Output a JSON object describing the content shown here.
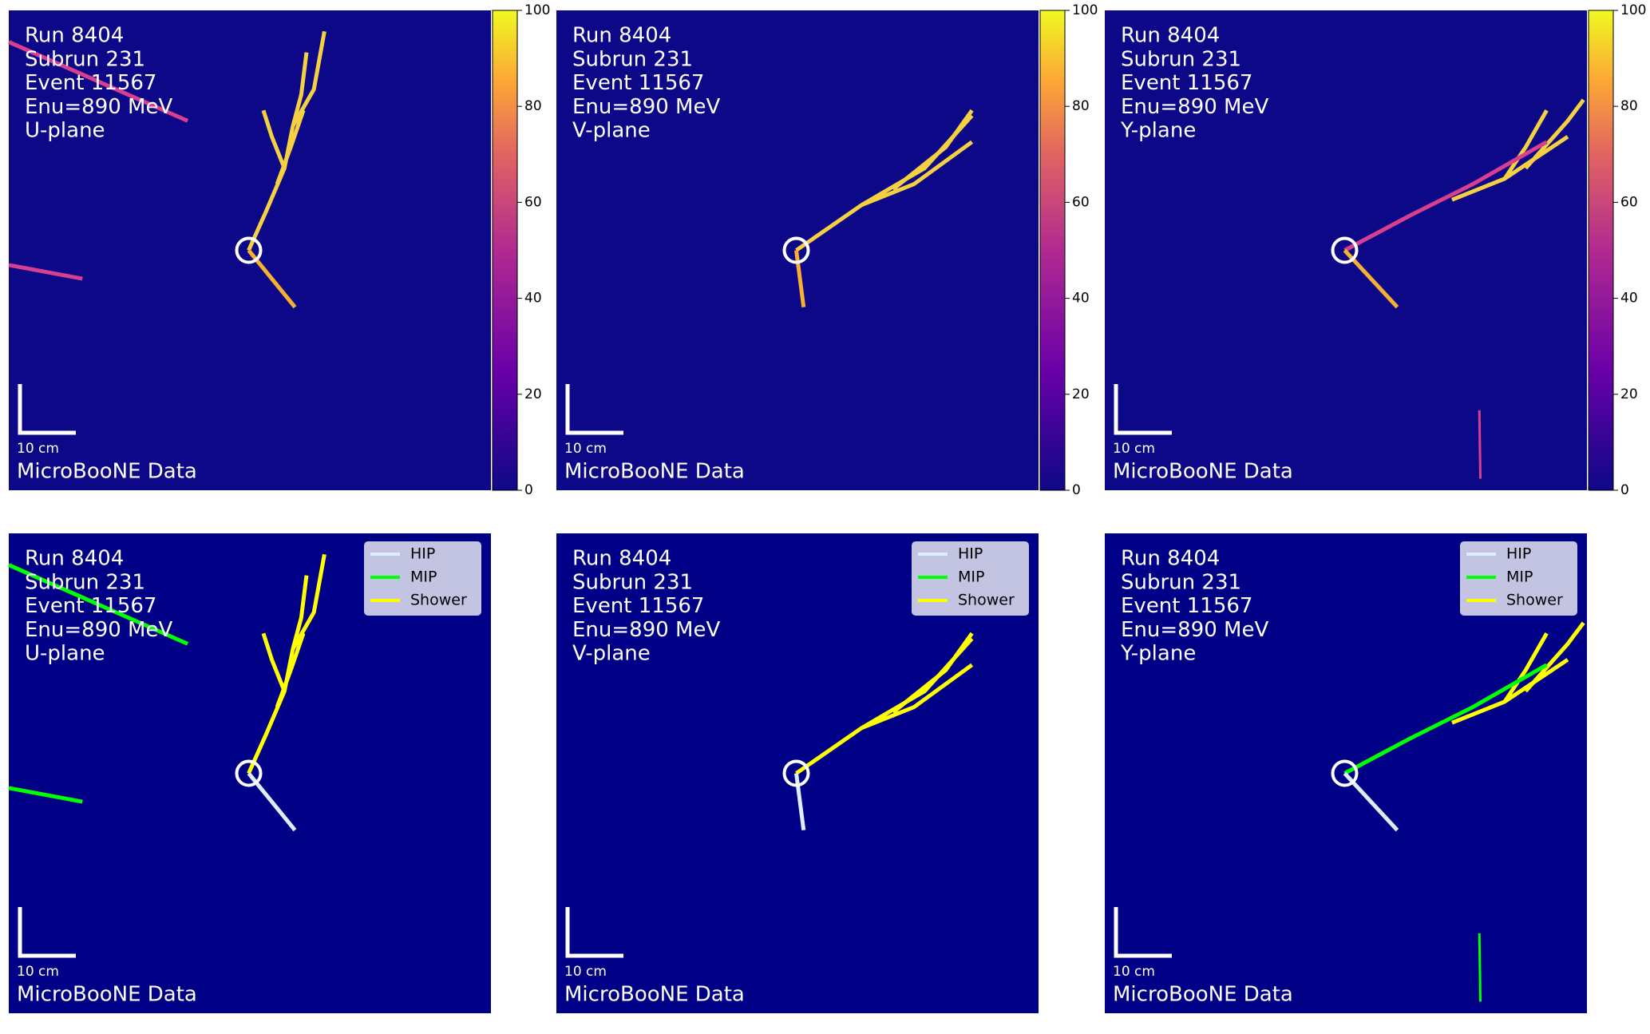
{
  "panels": [
    {
      "lines": [
        "Run 8404",
        "Subrun 231",
        "Event 11567",
        "Enu=890 MeV",
        "U-plane"
      ],
      "scale_label": "10 cm",
      "footer": "MicroBooNE Data"
    },
    {
      "lines": [
        "Run 8404",
        "Subrun 231",
        "Event 11567",
        "Enu=890 MeV",
        "V-plane"
      ],
      "scale_label": "10 cm",
      "footer": "MicroBooNE Data"
    },
    {
      "lines": [
        "Run 8404",
        "Subrun 231",
        "Event 11567",
        "Enu=890 MeV",
        "Y-plane"
      ],
      "scale_label": "10 cm",
      "footer": "MicroBooNE Data"
    },
    {
      "lines": [
        "Run 8404",
        "Subrun 231",
        "Event 11567",
        "Enu=890 MeV",
        "U-plane"
      ],
      "scale_label": "10 cm",
      "footer": "MicroBooNE Data"
    },
    {
      "lines": [
        "Run 8404",
        "Subrun 231",
        "Event 11567",
        "Enu=890 MeV",
        "V-plane"
      ],
      "scale_label": "10 cm",
      "footer": "MicroBooNE Data"
    },
    {
      "lines": [
        "Run 8404",
        "Subrun 231",
        "Event 11567",
        "Enu=890 MeV",
        "Y-plane"
      ],
      "scale_label": "10 cm",
      "footer": "MicroBooNE Data"
    }
  ],
  "colorbar": {
    "range": [
      0,
      100
    ],
    "ticks": [
      0,
      20,
      40,
      60,
      80,
      100
    ]
  },
  "legend": {
    "entries": [
      {
        "name": "HIP",
        "color": "#ddeeff"
      },
      {
        "name": "MIP",
        "color": "#00ff00"
      },
      {
        "name": "Shower",
        "color": "#ffff00"
      }
    ]
  }
}
